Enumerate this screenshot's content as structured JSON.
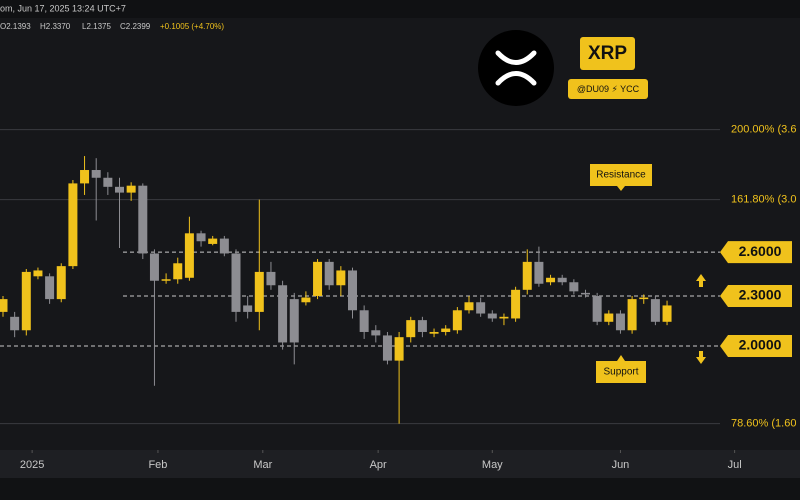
{
  "header": {
    "timestamp": "om, Jun 17, 2025 13:24 UTC+7",
    "ohlc": [
      "O2.1393",
      "H2.3370",
      "L2.1375",
      "C2.2399",
      "+0.1005 (+4.70%)"
    ]
  },
  "badge": {
    "symbol": "XRP",
    "handle": "@DU09 ⚡ YCC"
  },
  "chart_data": {
    "type": "candlestick",
    "categories": [
      null,
      null,
      null,
      null,
      null,
      null,
      null,
      null,
      null,
      null,
      null,
      null,
      null,
      null,
      null,
      null,
      null,
      null,
      null,
      null,
      null,
      null,
      null,
      null,
      null,
      null,
      null,
      null,
      null,
      null,
      null,
      null,
      null,
      null,
      null,
      null,
      null,
      null,
      null,
      null,
      null,
      null,
      null,
      null,
      null,
      null,
      null,
      null,
      null,
      null,
      null,
      null,
      null,
      null,
      null,
      null,
      null,
      null
    ],
    "open": [
      2.2,
      2.17,
      2.09,
      2.43,
      2.43,
      2.28,
      2.5,
      3.15,
      3.27,
      3.2,
      3.12,
      3.07,
      3.13,
      2.59,
      2.4,
      2.41,
      2.42,
      2.74,
      2.66,
      2.7,
      2.59,
      2.24,
      2.2,
      2.46,
      2.37,
      2.28,
      2.26,
      2.3,
      2.53,
      2.37,
      2.47,
      2.21,
      2.09,
      2.06,
      1.92,
      2.05,
      2.15,
      2.07,
      2.08,
      2.09,
      2.21,
      2.26,
      2.19,
      2.16,
      2.16,
      2.34,
      2.53,
      2.39,
      2.42,
      2.39,
      2.32,
      2.3,
      2.14,
      2.19,
      2.09,
      2.28,
      2.28,
      2.14
    ],
    "high": [
      2.3,
      2.2,
      2.48,
      2.49,
      2.45,
      2.52,
      3.18,
      3.4,
      3.38,
      3.25,
      3.2,
      3.16,
      3.15,
      2.62,
      2.45,
      2.56,
      2.87,
      2.76,
      2.72,
      2.72,
      2.62,
      2.3,
      3.01,
      2.53,
      2.4,
      2.32,
      2.33,
      2.55,
      2.55,
      2.5,
      2.49,
      2.24,
      2.12,
      2.08,
      2.08,
      2.17,
      2.17,
      2.1,
      2.12,
      2.23,
      2.3,
      2.29,
      2.21,
      2.19,
      2.36,
      2.62,
      2.64,
      2.44,
      2.44,
      2.41,
      2.34,
      2.32,
      2.21,
      2.21,
      2.3,
      2.31,
      2.3,
      2.27
    ],
    "low": [
      2.17,
      2.05,
      2.06,
      2.41,
      2.25,
      2.26,
      2.48,
      3.05,
      2.84,
      3.05,
      2.63,
      3.0,
      2.55,
      1.79,
      2.38,
      2.38,
      2.4,
      2.64,
      2.65,
      2.57,
      2.14,
      2.16,
      2.09,
      2.34,
      1.98,
      1.9,
      2.24,
      2.28,
      2.34,
      2.3,
      2.16,
      2.04,
      2.02,
      1.9,
      1.61,
      2.02,
      2.05,
      2.05,
      2.06,
      2.07,
      2.19,
      2.17,
      2.14,
      2.12,
      2.14,
      2.31,
      2.36,
      2.37,
      2.37,
      2.31,
      2.29,
      2.12,
      2.12,
      2.07,
      2.07,
      2.25,
      2.12,
      2.12
    ],
    "close": [
      2.28,
      2.09,
      2.46,
      2.47,
      2.28,
      2.5,
      3.15,
      3.27,
      3.2,
      3.12,
      3.07,
      3.13,
      2.59,
      2.4,
      2.41,
      2.52,
      2.74,
      2.68,
      2.7,
      2.59,
      2.2,
      2.2,
      2.46,
      2.37,
      2.02,
      2.02,
      2.29,
      2.53,
      2.37,
      2.47,
      2.21,
      2.08,
      2.06,
      1.92,
      2.05,
      2.15,
      2.08,
      2.08,
      2.1,
      2.21,
      2.26,
      2.19,
      2.16,
      2.17,
      2.34,
      2.53,
      2.38,
      2.42,
      2.39,
      2.33,
      2.31,
      2.14,
      2.19,
      2.09,
      2.28,
      2.29,
      2.14,
      2.24
    ],
    "up_color": "#f0c21c",
    "down_color": "#8d8d92",
    "ylim": [
      1.5,
      5.0
    ],
    "log_scale": true,
    "xticks": [
      {
        "value": 2.5,
        "label": "2025"
      },
      {
        "value": 13.3,
        "label": "Feb"
      },
      {
        "value": 22.3,
        "label": "Mar"
      },
      {
        "value": 32.2,
        "label": "Apr"
      },
      {
        "value": 42,
        "label": "May"
      },
      {
        "value": 53,
        "label": "Jun"
      },
      {
        "value": 62.8,
        "label": "Jul"
      }
    ],
    "fib_levels": [
      {
        "value": 3.66,
        "label": "200.00% (3.6"
      },
      {
        "value": 3.01,
        "label": "161.80% (3.0"
      },
      {
        "value": 1.61,
        "label": "78.60% (1.60"
      }
    ],
    "levels": [
      {
        "value": 2.6,
        "label": "2.6000"
      },
      {
        "value": 2.3,
        "label": "2.3000"
      },
      {
        "value": 2.0,
        "label": "2.0000"
      }
    ],
    "annotations": [
      "Resistance",
      "Support"
    ]
  }
}
